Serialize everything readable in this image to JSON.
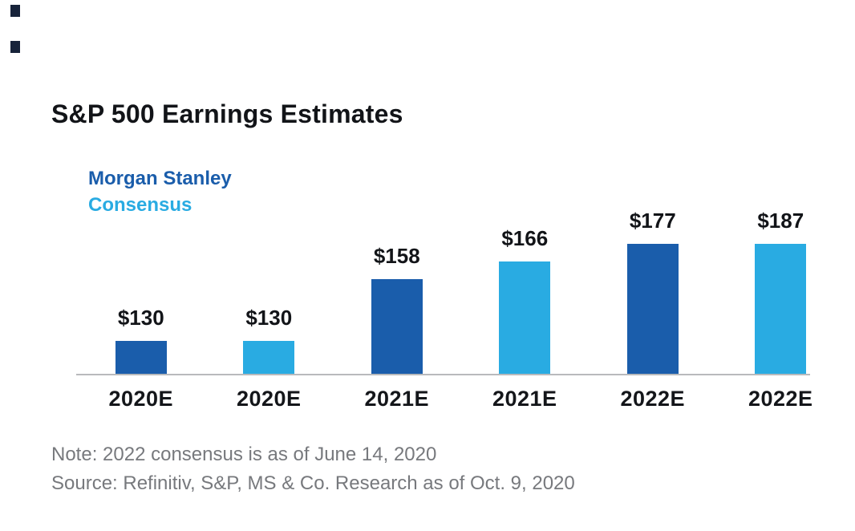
{
  "page": {
    "title": "S&P 500 Earnings Estimates"
  },
  "legend": {
    "series1": "Morgan Stanley",
    "series2": "Consensus"
  },
  "colors": {
    "morgan_stanley": "#1a5dab",
    "consensus": "#29abe2",
    "axis": "#b9babc",
    "note_text": "#77797d",
    "label_text": "#121418"
  },
  "notes": {
    "note": "Note: 2022 consensus is as of June 14, 2020",
    "source": "Source: Refinitiv, S&P, MS & Co. Research as of Oct. 9, 2020"
  },
  "chart_data": {
    "type": "bar",
    "title": "S&P 500 Earnings Estimates",
    "categories": [
      "2020E",
      "2020E",
      "2021E",
      "2021E",
      "2022E",
      "2022E"
    ],
    "series_pattern": [
      "Morgan Stanley",
      "Consensus",
      "Morgan Stanley",
      "Consensus",
      "Morgan Stanley",
      "Consensus"
    ],
    "values": [
      130,
      130,
      158,
      166,
      177,
      187
    ],
    "labels": [
      "$130",
      "$130",
      "$158",
      "$166",
      "$177",
      "$187"
    ],
    "xlabel": "",
    "ylabel": "",
    "ylim": [
      115,
      190
    ],
    "grid": false,
    "legend_position": "top-left",
    "value_labels_shown": true
  }
}
